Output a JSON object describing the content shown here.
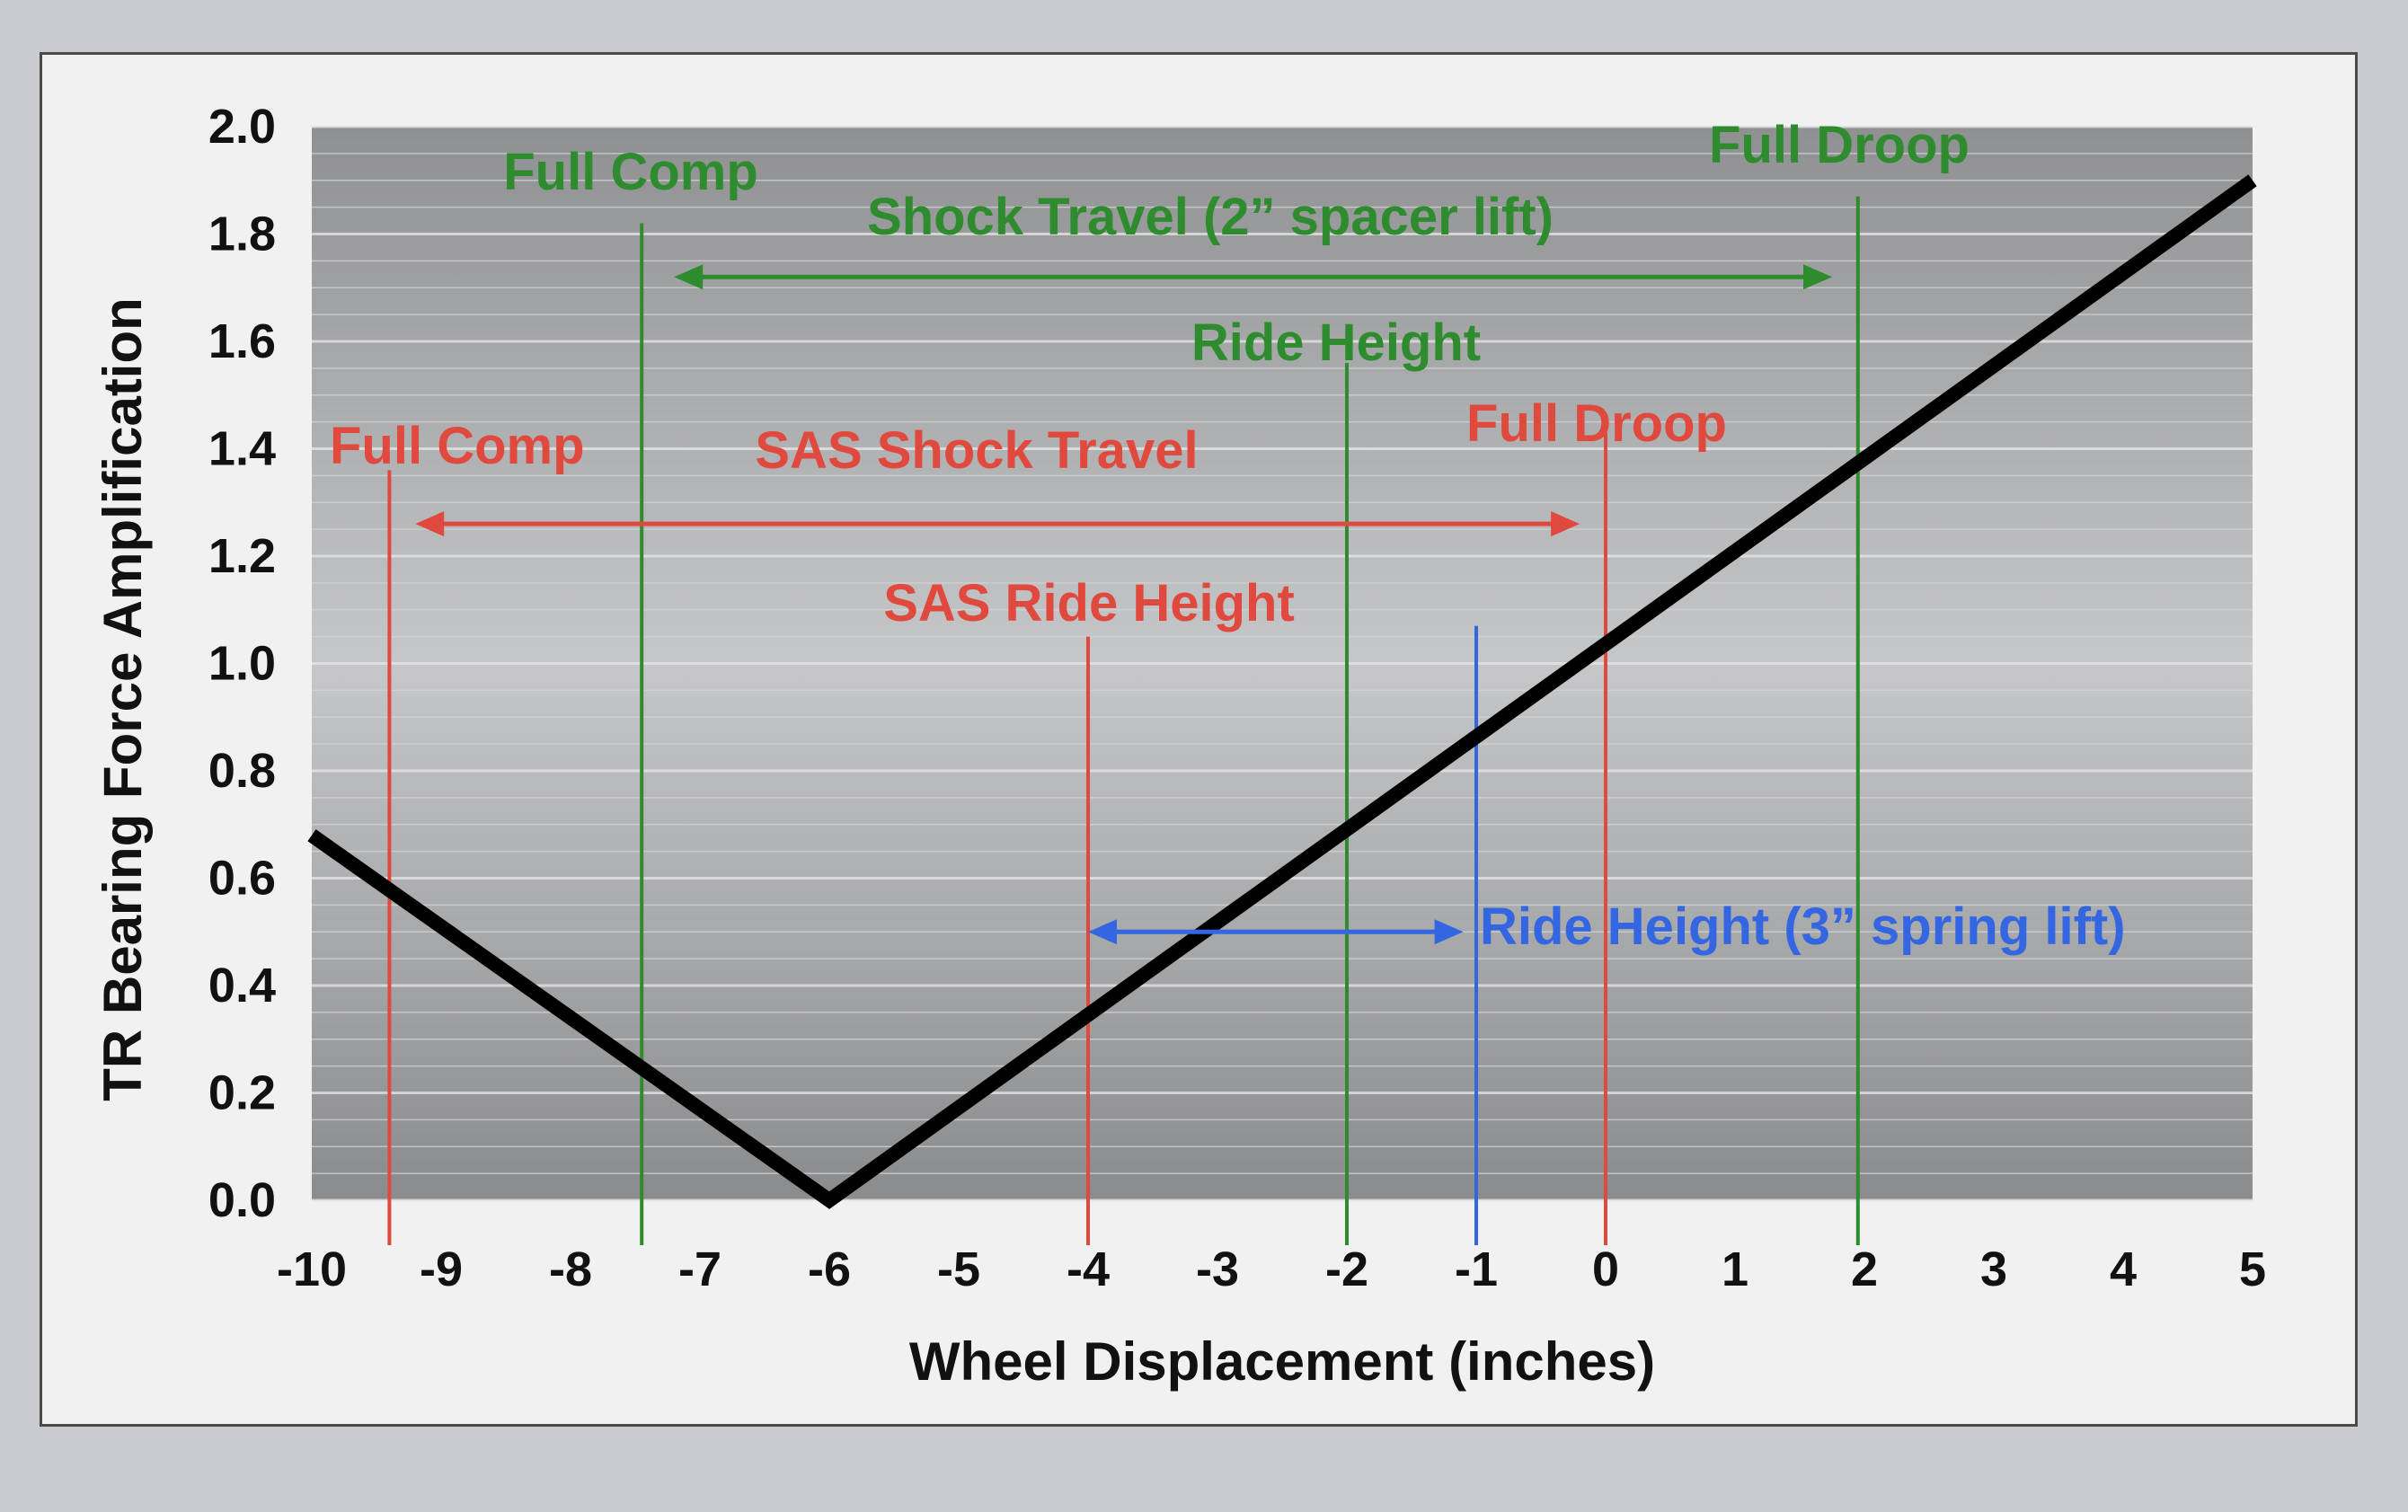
{
  "chart_data": {
    "type": "line",
    "title": "",
    "xlabel": "Wheel Displacement (inches)",
    "ylabel": "TR Bearing Force Amplification",
    "xlim": [
      -10,
      5
    ],
    "ylim": [
      0,
      2.0
    ],
    "x_ticks": [
      -10,
      -9,
      -8,
      -7,
      -6,
      -5,
      -4,
      -3,
      -2,
      -1,
      0,
      1,
      2,
      3,
      4,
      5
    ],
    "y_ticks": [
      "0.0",
      "0.2",
      "0.4",
      "0.6",
      "0.8",
      "1.0",
      "1.2",
      "1.4",
      "1.6",
      "1.8",
      "2.0"
    ],
    "grid": true,
    "series": [
      {
        "name": "",
        "color": "#000000",
        "x": [
          -10,
          -6,
          5
        ],
        "y": [
          0.68,
          0.0,
          1.9
        ]
      }
    ],
    "vertical_lines": [
      {
        "x": -9.4,
        "y_top": 1.36,
        "color": "#e04a3e",
        "label": "Full Comp"
      },
      {
        "x": -4.0,
        "y_top": 1.05,
        "color": "#e04a3e",
        "label": "SAS Ride Height"
      },
      {
        "x": 0.0,
        "y_top": 1.43,
        "color": "#e04a3e",
        "label": "Full Droop"
      },
      {
        "x": -7.45,
        "y_top": 1.82,
        "color": "#2e8b2e",
        "label": "Full Comp"
      },
      {
        "x": -2.0,
        "y_top": 1.56,
        "color": "#2e8b2e",
        "label": "Ride Height"
      },
      {
        "x": 1.95,
        "y_top": 1.87,
        "color": "#2e8b2e",
        "label": "Full Droop"
      },
      {
        "x": -1.0,
        "y_top": 1.07,
        "color": "#3366e0",
        "label": ""
      }
    ],
    "arrows": [
      {
        "x1": -7.2,
        "x2": 1.75,
        "y": 1.72,
        "color": "#2e8b2e",
        "label": "Shock Travel (2” spacer lift)"
      },
      {
        "x1": -9.2,
        "x2": -0.2,
        "y": 1.26,
        "color": "#e04a3e",
        "label": "SAS Shock Travel"
      },
      {
        "x1": -4.0,
        "x2": -1.1,
        "y": 0.5,
        "color": "#3366e0",
        "label": "Ride Height (3” spring lift)"
      }
    ]
  }
}
